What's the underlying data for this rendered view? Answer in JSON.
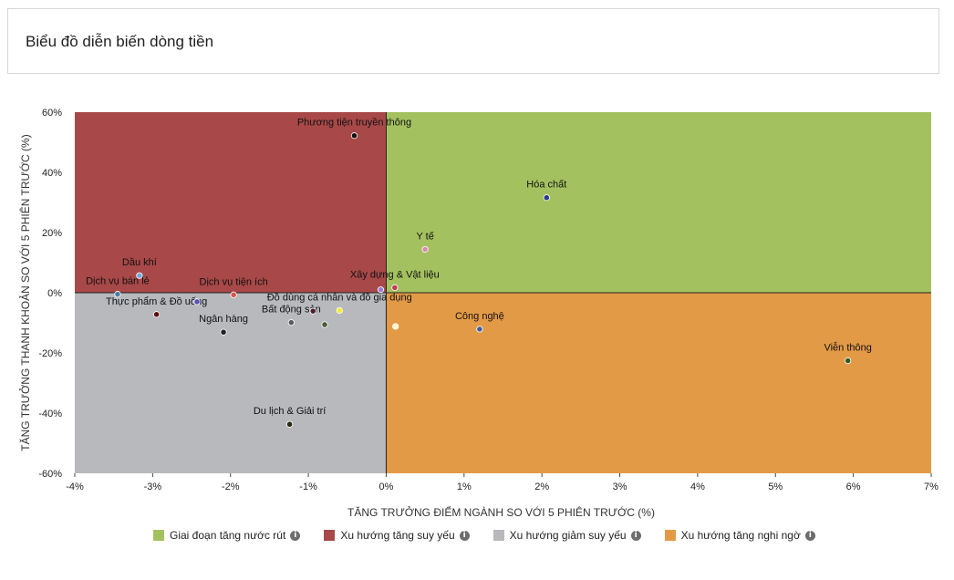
{
  "header": {
    "title": "Biểu đồ diễn biến dòng tiền"
  },
  "legend": [
    {
      "label": "Giai đoạn tăng nước rút",
      "color": "#a4c15f",
      "icon": "info-icon"
    },
    {
      "label": "Xu hướng tăng suy yếu",
      "color": "#a84848",
      "icon": "info-icon"
    },
    {
      "label": "Xu hướng giảm suy yếu",
      "color": "#b8b9bd",
      "icon": "info-icon"
    },
    {
      "label": "Xu hướng tăng nghi ngờ",
      "color": "#e39a46",
      "icon": "info-icon"
    }
  ],
  "chart_data": {
    "type": "scatter",
    "xlabel": "TĂNG TRƯỞNG ĐIỂM NGÀNH SO VỚI 5 PHIÊN TRƯỚC (%)",
    "ylabel": "TĂNG TRƯỞNG THANH KHOẢN SO VỚI 5 PHIÊN TRƯỚC (%)",
    "xlim": [
      -4,
      7
    ],
    "ylim": [
      -60,
      60
    ],
    "x_ticks": [
      -4,
      -3,
      -2,
      -1,
      0,
      1,
      2,
      3,
      4,
      5,
      6,
      7
    ],
    "y_ticks": [
      60,
      40,
      20,
      0,
      -20,
      -40,
      -60
    ],
    "tick_suffix": "%",
    "quadrants": [
      {
        "name": "Xu hướng tăng suy yếu",
        "x": [
          -4,
          0
        ],
        "y": [
          0,
          60
        ],
        "color": "#a84848"
      },
      {
        "name": "Giai đoạn tăng nước rút",
        "x": [
          0,
          7
        ],
        "y": [
          0,
          60
        ],
        "color": "#a4c15f"
      },
      {
        "name": "Xu hướng giảm suy yếu",
        "x": [
          -4,
          0
        ],
        "y": [
          -60,
          0
        ],
        "color": "#b8b9bd"
      },
      {
        "name": "Xu hướng tăng nghi ngờ",
        "x": [
          0,
          7
        ],
        "y": [
          -60,
          0
        ],
        "color": "#e39a46"
      }
    ],
    "points": [
      {
        "label": "Phương tiện truyền thông",
        "x": -0.41,
        "y": 52.2,
        "color": "#111111",
        "label_pos": "above"
      },
      {
        "label": "Hóa chất",
        "x": 2.06,
        "y": 31.6,
        "color": "#2b3a8f",
        "label_pos": "above"
      },
      {
        "label": "Y tế",
        "x": 0.5,
        "y": 14.4,
        "color": "#d98bb0",
        "label_pos": "above"
      },
      {
        "label": "Dầu khí",
        "x": -3.17,
        "y": 5.7,
        "color": "#6fa8dc",
        "label_pos": "above"
      },
      {
        "label": "Dịch vụ bán lẻ",
        "x": -3.45,
        "y": -0.5,
        "color": "#4a7fa8",
        "label_pos": "above"
      },
      {
        "label": "Dịch vụ tiện ích",
        "x": -1.96,
        "y": -0.7,
        "color": "#d9534f",
        "label_pos": "above"
      },
      {
        "label": "Xây dựng & Vật liệu",
        "x": 0.11,
        "y": 1.7,
        "color": "#c0395a",
        "label_pos": "above"
      },
      {
        "label": "",
        "x": -0.07,
        "y": 1.0,
        "color": "#9b7fd4",
        "label_pos": "none"
      },
      {
        "label": "Thực phẩm & Đồ uống",
        "x": -2.95,
        "y": -7.2,
        "color": "#5c1010",
        "label_pos": "above"
      },
      {
        "label": "",
        "x": -2.43,
        "y": -3.0,
        "color": "#5a4fb8",
        "label_pos": "none"
      },
      {
        "label": "Đồ dùng cá nhân và đồ gia dụng",
        "x": -0.6,
        "y": -5.9,
        "color": "#f2ee2e",
        "label_pos": "above"
      },
      {
        "label": "Bất động sản",
        "x": -1.22,
        "y": -9.9,
        "color": "#5a5a5a",
        "label_pos": "above"
      },
      {
        "label": "",
        "x": -0.94,
        "y": -6.1,
        "color": "#4a1f2a",
        "label_pos": "none"
      },
      {
        "label": "",
        "x": -0.79,
        "y": -10.6,
        "color": "#4d5a3a",
        "label_pos": "none"
      },
      {
        "label": "Ngân hàng",
        "x": -2.09,
        "y": -13.1,
        "color": "#222222",
        "label_pos": "above"
      },
      {
        "label": "",
        "x": 0.12,
        "y": -11.2,
        "color": "#fff5c8",
        "label_pos": "none"
      },
      {
        "label": "Công nghệ",
        "x": 1.2,
        "y": -12.1,
        "color": "#3a5fa0",
        "label_pos": "above"
      },
      {
        "label": "Viễn thông",
        "x": 5.93,
        "y": -22.6,
        "color": "#2f5b2a",
        "label_pos": "above"
      },
      {
        "label": "Du lịch & Giải trí",
        "x": -1.24,
        "y": -43.7,
        "color": "#2a2a10",
        "label_pos": "above"
      }
    ]
  }
}
